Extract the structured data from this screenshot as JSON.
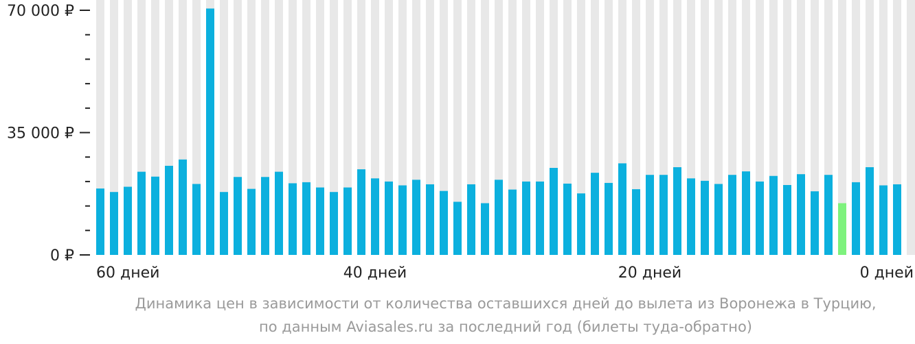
{
  "chart_data": {
    "type": "bar",
    "y_ticks": [
      {
        "value": 70000,
        "label": "70 000 ₽"
      },
      {
        "value": 35000,
        "label": "35 000 ₽"
      },
      {
        "value": 0,
        "label": "0 ₽"
      }
    ],
    "ylim": [
      0,
      70000
    ],
    "x_ticks": [
      {
        "days": 60,
        "label": "60 дней"
      },
      {
        "days": 40,
        "label": "40 дней"
      },
      {
        "days": 20,
        "label": "20 дней"
      },
      {
        "days": 0,
        "label": "0 дней"
      }
    ],
    "days": [
      60,
      59,
      58,
      57,
      56,
      55,
      54,
      53,
      52,
      51,
      50,
      49,
      48,
      47,
      46,
      45,
      44,
      43,
      42,
      41,
      40,
      39,
      38,
      37,
      36,
      35,
      34,
      33,
      32,
      31,
      30,
      29,
      28,
      27,
      26,
      25,
      24,
      23,
      22,
      21,
      20,
      19,
      18,
      17,
      16,
      15,
      14,
      13,
      12,
      11,
      10,
      9,
      8,
      7,
      6,
      5,
      4,
      3,
      2,
      1
    ],
    "values": [
      19000,
      18000,
      19500,
      23800,
      22400,
      25500,
      27300,
      20300,
      70500,
      18000,
      22300,
      18900,
      22300,
      23800,
      20500,
      20800,
      19300,
      18000,
      19300,
      24500,
      21900,
      21000,
      19900,
      21500,
      20200,
      18300,
      15200,
      20200,
      14800,
      21500,
      18700,
      21000,
      21000,
      24900,
      20400,
      17600,
      23500,
      20600,
      26200,
      18800,
      22900,
      22900,
      25100,
      21900,
      21200,
      20300,
      22900,
      23900,
      21000,
      22600,
      20000,
      23100,
      18200,
      22900,
      14800,
      20800,
      25100,
      19900,
      20200,
      null
    ],
    "highlight_index": 54,
    "colors": {
      "bar": "#0cb0de",
      "highlight": "#7ef27d",
      "column_bg": "#e8e8e8",
      "axis_text": "#222222"
    }
  },
  "caption": {
    "line1": "Динамика цен в зависимости от количества оставшихся дней до вылета из Воронежа в Турцию,",
    "line2": "по данным Aviasales.ru за последний год (билеты туда-обратно)"
  }
}
